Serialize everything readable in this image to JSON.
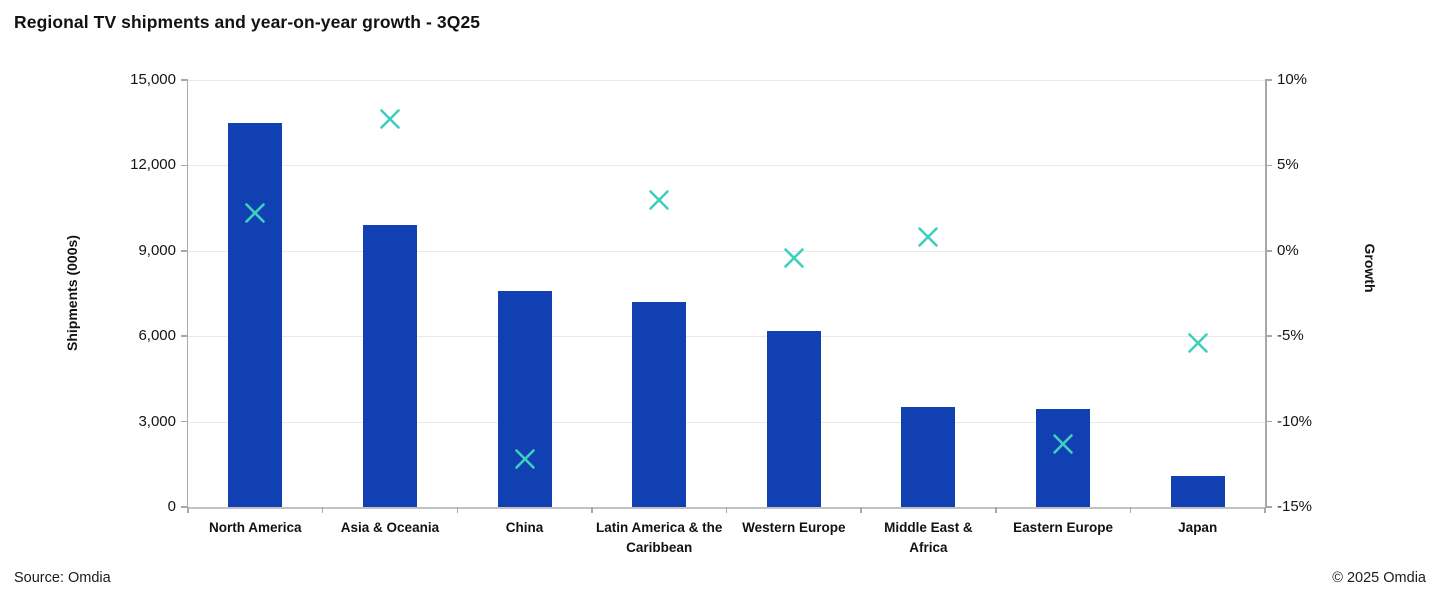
{
  "title": "Regional TV shipments and year-on-year growth - 3Q25",
  "footer": {
    "source": "Source: Omdia",
    "copyright": "© 2025 Omdia"
  },
  "colors": {
    "bar": "#1140b2",
    "marker": "#3ecfbe",
    "gridline": "#e9e9e9",
    "axis": "#a8a8a8"
  },
  "chart_data": {
    "type": "combo (bar + scatter-x markers)",
    "title": "Regional TV shipments and year-on-year growth - 3Q25",
    "categories": [
      "North America",
      "Asia & Oceania",
      "China",
      "Latin America & the\nCaribbean",
      "Western Europe",
      "Middle East &\nAfrica",
      "Eastern Europe",
      "Japan"
    ],
    "series": [
      {
        "name": "Shipments (000s)",
        "type": "bar",
        "axis": "left",
        "values": [
          13500,
          9900,
          7600,
          7200,
          6200,
          3500,
          3450,
          1100
        ]
      },
      {
        "name": "Growth",
        "type": "scatter",
        "marker": "x",
        "axis": "right",
        "values": [
          2.2,
          7.7,
          -12.2,
          3.0,
          -0.4,
          0.8,
          -11.3,
          -5.4
        ]
      }
    ],
    "left_axis": {
      "label": "Shipments (000s)",
      "min": 0,
      "max": 15000,
      "tick_step": 3000,
      "tick_labels": [
        "0",
        "3,000",
        "6,000",
        "9,000",
        "12,000",
        "15,000"
      ]
    },
    "right_axis": {
      "label": "Growth",
      "min": -15,
      "max": 10,
      "tick_step": 5,
      "tick_labels": [
        "-15%",
        "-10%",
        "-5%",
        "0%",
        "5%",
        "10%"
      ]
    },
    "grid": true,
    "legend": "none"
  }
}
